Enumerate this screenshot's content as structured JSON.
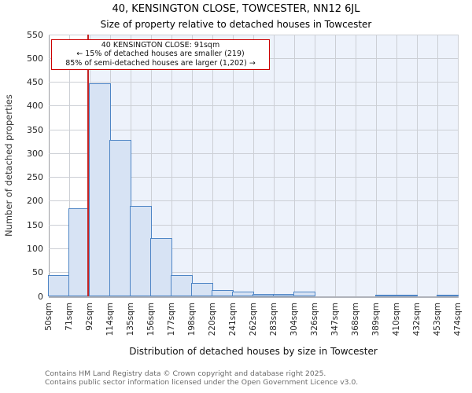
{
  "header": {
    "title": "40, KENSINGTON CLOSE, TOWCESTER, NN12 6JL",
    "subtitle": "Size of property relative to detached houses in Towcester"
  },
  "annotation": {
    "lines": [
      "40 KENSINGTON CLOSE: 91sqm",
      "← 15% of detached houses are smaller (219)",
      "85% of semi-detached houses are larger (1,202) →"
    ],
    "border_color": "#cc0000"
  },
  "chart_data": {
    "type": "bar",
    "title": "Size of property relative to detached houses in Towcester",
    "xlabel": "Distribution of detached houses by size in Towcester",
    "ylabel": "Number of detached properties",
    "bin_edge_labels": [
      "50sqm",
      "71sqm",
      "92sqm",
      "114sqm",
      "135sqm",
      "156sqm",
      "177sqm",
      "198sqm",
      "220sqm",
      "241sqm",
      "262sqm",
      "283sqm",
      "304sqm",
      "326sqm",
      "347sqm",
      "368sqm",
      "389sqm",
      "410sqm",
      "432sqm",
      "453sqm",
      "474sqm"
    ],
    "bin_edges_sqm": [
      50,
      71,
      92,
      114,
      135,
      156,
      177,
      198,
      220,
      241,
      262,
      283,
      304,
      326,
      347,
      368,
      389,
      410,
      432,
      453,
      474
    ],
    "values": [
      45,
      185,
      448,
      328,
      190,
      123,
      45,
      28,
      14,
      10,
      5,
      5,
      10,
      0,
      0,
      0,
      2,
      2,
      0,
      2
    ],
    "ylim": [
      0,
      550
    ],
    "ytick_step": 50,
    "grid": true,
    "legend_position": "none",
    "marker_value_sqm": 91,
    "colors": {
      "bar_fill": "#d7e3f4",
      "bar_edge": "#4e85c5",
      "marker_line": "#c42323",
      "shade_region": "#edf2fb",
      "gridline": "#cccfd5"
    }
  },
  "footer": {
    "line1": "Contains HM Land Registry data © Crown copyright and database right 2025.",
    "line2": "Contains public sector information licensed under the Open Government Licence v3.0."
  }
}
